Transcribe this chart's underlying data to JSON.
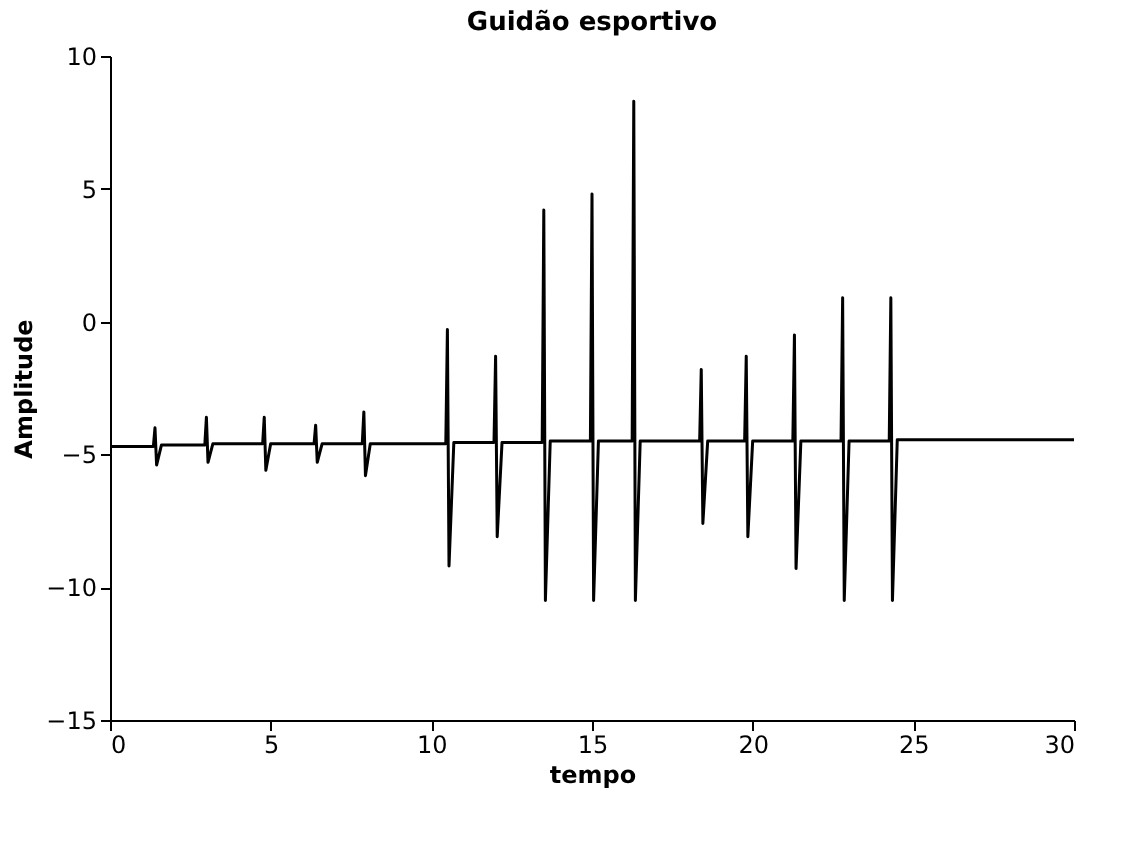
{
  "chart_data": {
    "type": "line",
    "title": "Guidão esportivo",
    "xlabel": "tempo",
    "ylabel": "Amplitude",
    "x": [
      0,
      1.35,
      1.4,
      1.45,
      1.6,
      2.95,
      3.0,
      3.05,
      3.2,
      4.75,
      4.8,
      4.85,
      5.0,
      6.35,
      6.4,
      6.45,
      6.6,
      7.85,
      7.9,
      7.95,
      8.1,
      10.45,
      10.5,
      10.55,
      10.7,
      11.95,
      12.0,
      12.05,
      12.2,
      13.45,
      13.5,
      13.55,
      13.7,
      14.95,
      15.0,
      15.05,
      15.2,
      16.25,
      16.3,
      16.35,
      16.5,
      18.35,
      18.4,
      18.45,
      18.6,
      19.75,
      19.8,
      19.85,
      20.0,
      21.25,
      21.3,
      21.35,
      21.5,
      22.75,
      22.8,
      22.85,
      23.0,
      24.25,
      24.3,
      24.35,
      24.5,
      30
    ],
    "series": [
      {
        "color": "#000000",
        "values": [
          -4.7,
          -4.7,
          -4.0,
          -5.4,
          -4.65,
          -4.65,
          -3.6,
          -5.3,
          -4.6,
          -4.6,
          -3.6,
          -5.6,
          -4.6,
          -4.6,
          -3.9,
          -5.3,
          -4.6,
          -4.6,
          -3.4,
          -5.8,
          -4.6,
          -4.6,
          -0.3,
          -9.2,
          -4.55,
          -4.55,
          -1.3,
          -8.1,
          -4.55,
          -4.55,
          4.2,
          -10.5,
          -4.5,
          -4.5,
          4.8,
          -10.5,
          -4.5,
          -4.5,
          8.3,
          -10.5,
          -4.5,
          -4.5,
          -1.8,
          -7.6,
          -4.5,
          -4.5,
          -1.3,
          -8.1,
          -4.5,
          -4.5,
          -0.5,
          -9.3,
          -4.5,
          -4.5,
          0.9,
          -10.5,
          -4.5,
          -4.5,
          0.9,
          -10.5,
          -4.45,
          -4.45
        ]
      }
    ],
    "xlim": [
      0,
      30
    ],
    "xticks": [
      0,
      5,
      10,
      15,
      20,
      25,
      30
    ],
    "ylim": [
      -15,
      10
    ],
    "yticks": [
      -15,
      -10,
      -5,
      0,
      5,
      10
    ],
    "grid": false,
    "marker": "none",
    "line_style": "solid"
  }
}
